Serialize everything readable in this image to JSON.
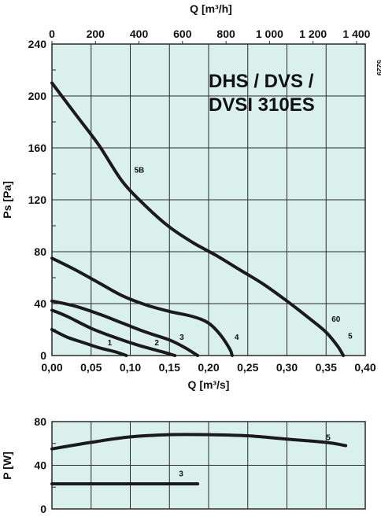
{
  "colors": {
    "plot_bg": "#d9f0ec",
    "curve": "#1a1a1a",
    "grid": "#2a2a2a"
  },
  "chart_data": [
    {
      "type": "line",
      "title_lines": [
        "DHS / DVS /",
        "DVSI 310ES"
      ],
      "code": "5229",
      "xlabel": "Q [m³/s]",
      "ylabel": "Ps [Pa]",
      "top_xlabel": "Q [m³/h]",
      "xlim": [
        0,
        0.4
      ],
      "ylim": [
        0,
        240
      ],
      "x_ticks": [
        0,
        0.05,
        0.1,
        0.15,
        0.2,
        0.25,
        0.3,
        0.35,
        0.4
      ],
      "x_tick_labels": [
        "0,00",
        "0,05",
        "0,10",
        "0,15",
        "0,20",
        "0,25",
        "0,30",
        "0,35",
        "0,40"
      ],
      "y_ticks": [
        0,
        40,
        80,
        120,
        160,
        200,
        240
      ],
      "y_tick_labels": [
        "0",
        "40",
        "80",
        "120",
        "160",
        "200",
        "240"
      ],
      "top_ticks": [
        0,
        200,
        400,
        600,
        800,
        1000,
        1200,
        1400
      ],
      "top_tick_labels": [
        "0",
        "200",
        "400",
        "600",
        "800",
        "1 000",
        "1 200",
        "1 400"
      ],
      "series": [
        {
          "name": "5B",
          "label_at": [
            0.105,
            141
          ],
          "points": [
            [
              0,
              210
            ],
            [
              0.03,
              186
            ],
            [
              0.06,
              162
            ],
            [
              0.09,
              134
            ],
            [
              0.12,
              115
            ],
            [
              0.15,
              99
            ],
            [
              0.18,
              87
            ],
            [
              0.21,
              77
            ],
            [
              0.24,
              66
            ],
            [
              0.27,
              55
            ],
            [
              0.3,
              42
            ],
            [
              0.33,
              28
            ],
            [
              0.35,
              18
            ],
            [
              0.365,
              7
            ],
            [
              0.372,
              0
            ]
          ]
        },
        {
          "name": "5",
          "label_at": [
            0.378,
            13
          ],
          "points": []
        },
        {
          "name": "60",
          "label_at": [
            0.357,
            26
          ],
          "points": []
        },
        {
          "name": "4",
          "label_at": [
            0.233,
            12
          ],
          "points": [
            [
              0,
              75
            ],
            [
              0.03,
              66
            ],
            [
              0.06,
              56
            ],
            [
              0.09,
              46
            ],
            [
              0.12,
              39
            ],
            [
              0.15,
              34
            ],
            [
              0.18,
              30
            ],
            [
              0.2,
              25
            ],
            [
              0.215,
              16
            ],
            [
              0.227,
              5
            ],
            [
              0.23,
              0
            ]
          ]
        },
        {
          "name": "3",
          "label_at": [
            0.163,
            12
          ],
          "points": [
            [
              0,
              42
            ],
            [
              0.03,
              38
            ],
            [
              0.06,
              32
            ],
            [
              0.09,
              25
            ],
            [
              0.12,
              18
            ],
            [
              0.15,
              12
            ],
            [
              0.17,
              6
            ],
            [
              0.186,
              0
            ]
          ]
        },
        {
          "name": "2",
          "label_at": [
            0.131,
            8
          ],
          "points": [
            [
              0,
              35
            ],
            [
              0.02,
              30
            ],
            [
              0.05,
              21
            ],
            [
              0.08,
              14
            ],
            [
              0.11,
              8
            ],
            [
              0.14,
              3
            ],
            [
              0.157,
              0
            ]
          ]
        },
        {
          "name": "1",
          "label_at": [
            0.071,
            8
          ],
          "points": [
            [
              0,
              20
            ],
            [
              0.02,
              14
            ],
            [
              0.04,
              10
            ],
            [
              0.06,
              6
            ],
            [
              0.08,
              3
            ],
            [
              0.095,
              0
            ]
          ]
        }
      ]
    },
    {
      "type": "line",
      "ylabel": "P [W]",
      "xlim": [
        0,
        0.4
      ],
      "ylim": [
        0,
        80
      ],
      "y_ticks": [
        0,
        40,
        80
      ],
      "y_tick_labels": [
        "0",
        "40",
        "80"
      ],
      "series": [
        {
          "name": "5",
          "label_at": [
            0.35,
            63
          ],
          "points": [
            [
              0,
              55
            ],
            [
              0.05,
              61
            ],
            [
              0.1,
              66
            ],
            [
              0.15,
              68
            ],
            [
              0.2,
              68
            ],
            [
              0.25,
              67
            ],
            [
              0.3,
              64
            ],
            [
              0.35,
              61
            ],
            [
              0.375,
              58
            ]
          ]
        },
        {
          "name": "3",
          "label_at": [
            0.162,
            30
          ],
          "points": [
            [
              0,
              23
            ],
            [
              0.186,
              23
            ]
          ]
        }
      ]
    }
  ]
}
